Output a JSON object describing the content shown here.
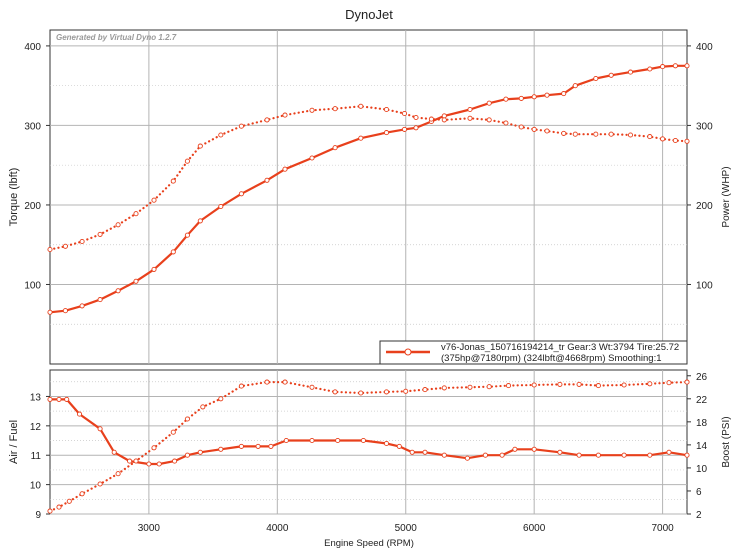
{
  "chart_data": [
    {
      "type": "line",
      "title": "DynoJet",
      "watermark": "Generated by Virtual Dyno 1.2.7",
      "xlabel": "Engine Speed (RPM)",
      "ylabel": "Torque (lbft)",
      "y2label": "Power (WHP)",
      "xlim": [
        2230,
        7190
      ],
      "ylim": [
        0,
        420
      ],
      "y2lim": [
        0,
        420
      ],
      "x_ticks": [
        3000,
        4000,
        5000,
        6000,
        7000
      ],
      "x_tick_labels": [
        "3000",
        "4000",
        "5000",
        "6000",
        "7000"
      ],
      "y_ticks": [
        100,
        200,
        300,
        400
      ],
      "y_tick_labels": [
        "100",
        "200",
        "300",
        "400"
      ],
      "y2_ticks": [
        100,
        200,
        300,
        400
      ],
      "y2_tick_labels": [
        "100",
        "200",
        "300",
        "400"
      ],
      "grid": true,
      "color": "#e8401c",
      "legend": {
        "placement": "bottom-right",
        "line1": "v76-Jonas_150716194214_tr Gear:3 Wt:3794 Tire:25.72",
        "line2": "(375hp@7180rpm) (324lbft@4668rpm) Smoothing:1"
      },
      "series": [
        {
          "axis": "power",
          "style": "solid",
          "x": [
            2230,
            2350,
            2480,
            2620,
            2760,
            2900,
            3040,
            3190,
            3300,
            3400,
            3560,
            3720,
            3920,
            4060,
            4270,
            4450,
            4650,
            4850,
            4990,
            5080,
            5200,
            5300,
            5500,
            5650,
            5780,
            5900,
            6000,
            6100,
            6230,
            6320,
            6480,
            6600,
            6750,
            6900,
            7000,
            7100,
            7190
          ],
          "y": [
            65,
            67,
            73,
            81,
            92,
            104,
            119,
            141,
            162,
            180,
            198,
            214,
            231,
            245,
            259,
            272,
            284,
            291,
            295,
            297,
            305,
            312,
            320,
            328,
            333,
            334,
            336,
            338,
            340,
            350,
            359,
            363,
            367,
            371,
            374,
            375,
            375
          ]
        },
        {
          "axis": "torque",
          "style": "dotted",
          "x": [
            2230,
            2350,
            2480,
            2620,
            2760,
            2900,
            3040,
            3190,
            3300,
            3400,
            3560,
            3720,
            3920,
            4060,
            4270,
            4450,
            4650,
            4850,
            4990,
            5080,
            5200,
            5300,
            5500,
            5650,
            5780,
            5900,
            6000,
            6100,
            6230,
            6320,
            6480,
            6600,
            6750,
            6900,
            7000,
            7100,
            7190
          ],
          "y": [
            144,
            148,
            154,
            163,
            175,
            189,
            206,
            230,
            255,
            274,
            288,
            299,
            307,
            313,
            319,
            321,
            324,
            320,
            315,
            310,
            308,
            307,
            309,
            307,
            303,
            298,
            295,
            293,
            290,
            289,
            289,
            289,
            288,
            286,
            283,
            281,
            280
          ]
        }
      ]
    },
    {
      "type": "line",
      "xlabel": "Engine Speed (RPM)",
      "ylabel": "Air / Fuel",
      "y2label": "Boost (PSI)",
      "xlim": [
        2230,
        7190
      ],
      "ylim": [
        9,
        13.9
      ],
      "y2lim": [
        2,
        27
      ],
      "x_ticks": [
        3000,
        4000,
        5000,
        6000,
        7000
      ],
      "x_tick_labels": [
        "3000",
        "4000",
        "5000",
        "6000",
        "7000"
      ],
      "y_ticks": [
        9,
        10,
        11,
        12,
        13
      ],
      "y_tick_labels": [
        "9",
        "10",
        "11",
        "12",
        "13"
      ],
      "y2_ticks": [
        2,
        6,
        10,
        14,
        18,
        22,
        26
      ],
      "y2_tick_labels": [
        "2",
        "6",
        "10",
        "14",
        "18",
        "22",
        "26"
      ],
      "grid": true,
      "color": "#e8401c",
      "series": [
        {
          "axis": "air_fuel",
          "style": "solid",
          "x": [
            2230,
            2300,
            2360,
            2460,
            2620,
            2730,
            2850,
            3000,
            3080,
            3200,
            3300,
            3400,
            3560,
            3720,
            3850,
            3950,
            4070,
            4270,
            4470,
            4670,
            4850,
            4950,
            5050,
            5150,
            5300,
            5480,
            5620,
            5750,
            5850,
            6000,
            6200,
            6350,
            6500,
            6700,
            6900,
            7050,
            7190
          ],
          "y": [
            12.9,
            12.9,
            12.9,
            12.4,
            11.9,
            11.1,
            10.8,
            10.7,
            10.7,
            10.8,
            11.0,
            11.1,
            11.2,
            11.3,
            11.3,
            11.3,
            11.5,
            11.5,
            11.5,
            11.5,
            11.4,
            11.3,
            11.1,
            11.1,
            11.0,
            10.9,
            11.0,
            11.0,
            11.2,
            11.2,
            11.1,
            11.0,
            11.0,
            11.0,
            11.0,
            11.1,
            11.0
          ]
        },
        {
          "axis": "boost",
          "style": "dotted",
          "x": [
            2230,
            2300,
            2380,
            2480,
            2620,
            2760,
            2900,
            3040,
            3190,
            3300,
            3420,
            3560,
            3720,
            3920,
            4060,
            4270,
            4450,
            4650,
            4850,
            5000,
            5150,
            5300,
            5500,
            5650,
            5800,
            6000,
            6200,
            6350,
            6500,
            6700,
            6900,
            7050,
            7190
          ],
          "y": [
            2.5,
            3.2,
            4.2,
            5.5,
            7.2,
            9.0,
            11.2,
            13.5,
            16.2,
            18.5,
            20.6,
            22.0,
            24.2,
            24.9,
            24.9,
            24.0,
            23.2,
            23.0,
            23.2,
            23.3,
            23.6,
            23.9,
            24.0,
            24.1,
            24.3,
            24.4,
            24.5,
            24.5,
            24.3,
            24.4,
            24.6,
            24.8,
            24.9
          ]
        }
      ]
    }
  ]
}
